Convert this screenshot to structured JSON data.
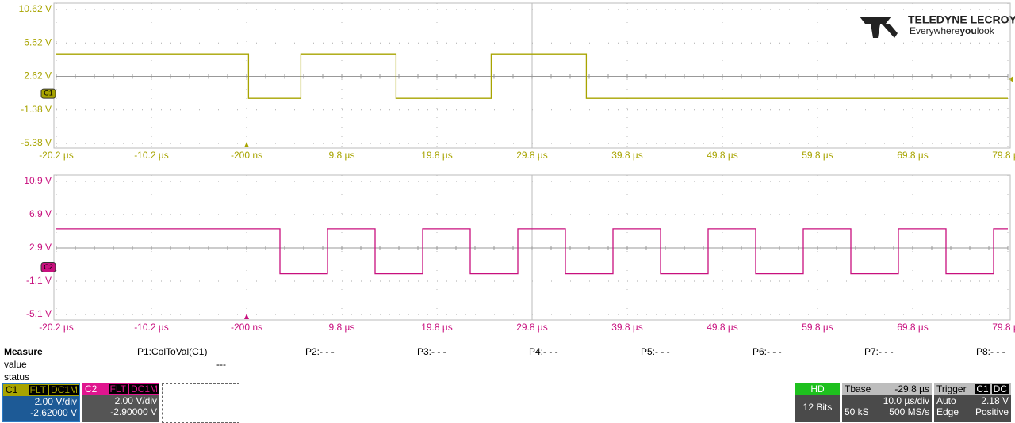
{
  "chart_data": [
    {
      "type": "line",
      "x": [
        -20.2,
        0,
        0,
        5.5,
        5.5,
        15.5,
        15.5,
        25.5,
        25.5,
        35.5,
        35.5,
        79.8
      ],
      "series": [
        {
          "name": "C1",
          "color": "#a8a400",
          "values": [
            5.3,
            5.3,
            0,
            0,
            5.3,
            5.3,
            0,
            0,
            5.3,
            5.3,
            0,
            0
          ]
        }
      ],
      "xlim": [
        -20.2,
        79.8
      ],
      "ylim": [
        -5.38,
        10.62
      ],
      "xticks": [
        {
          "value": -20.2,
          "label": "-20.2 µs"
        },
        {
          "value": -10.2,
          "label": "-10.2 µs"
        },
        {
          "value": -0.2,
          "label": "-200 ns"
        },
        {
          "value": 9.8,
          "label": "9.8 µs"
        },
        {
          "value": 19.8,
          "label": "19.8 µs"
        },
        {
          "value": 29.8,
          "label": "29.8 µs"
        },
        {
          "value": 39.8,
          "label": "39.8 µs"
        },
        {
          "value": 49.8,
          "label": "49.8 µs"
        },
        {
          "value": 59.8,
          "label": "59.8 µs"
        },
        {
          "value": 69.8,
          "label": "69.8 µs"
        },
        {
          "value": 79.8,
          "label": "79.8 µs"
        }
      ],
      "yticks": [
        {
          "value": 10.62,
          "label": "10.62 V"
        },
        {
          "value": 6.62,
          "label": "6.62 V"
        },
        {
          "value": 2.62,
          "label": "2.62 V"
        },
        {
          "value": -1.38,
          "label": "-1.38 V"
        },
        {
          "value": -5.38,
          "label": "-5.38 V"
        }
      ],
      "grid": true
    },
    {
      "type": "line",
      "x": [
        -20.2,
        3.3,
        3.3,
        8.3,
        8.3,
        13.3,
        13.3,
        18.3,
        18.3,
        23.3,
        23.3,
        28.3,
        28.3,
        33.3,
        33.3,
        38.3,
        38.3,
        43.3,
        43.3,
        48.3,
        48.3,
        53.3,
        53.3,
        58.3,
        58.3,
        63.3,
        63.3,
        68.3,
        68.3,
        73.3,
        73.3,
        78.3,
        78.3,
        79.8
      ],
      "series": [
        {
          "name": "C2",
          "color": "#c8107e",
          "values": [
            5.2,
            5.2,
            -0.2,
            -0.2,
            5.2,
            5.2,
            -0.2,
            -0.2,
            5.2,
            5.2,
            -0.2,
            -0.2,
            5.2,
            5.2,
            -0.2,
            -0.2,
            5.2,
            5.2,
            -0.2,
            -0.2,
            5.2,
            5.2,
            -0.2,
            -0.2,
            5.2,
            5.2,
            -0.2,
            -0.2,
            5.2,
            5.2,
            -0.2,
            -0.2,
            5.2,
            5.2
          ]
        }
      ],
      "xlim": [
        -20.2,
        79.8
      ],
      "ylim": [
        -5.1,
        10.9
      ],
      "xticks": [
        {
          "value": -20.2,
          "label": "-20.2 µs"
        },
        {
          "value": -10.2,
          "label": "-10.2 µs"
        },
        {
          "value": -0.2,
          "label": "-200 ns"
        },
        {
          "value": 9.8,
          "label": "9.8 µs"
        },
        {
          "value": 19.8,
          "label": "19.8 µs"
        },
        {
          "value": 29.8,
          "label": "29.8 µs"
        },
        {
          "value": 39.8,
          "label": "39.8 µs"
        },
        {
          "value": 49.8,
          "label": "49.8 µs"
        },
        {
          "value": 59.8,
          "label": "59.8 µs"
        },
        {
          "value": 69.8,
          "label": "69.8 µs"
        },
        {
          "value": 79.8,
          "label": "79.8 µs"
        }
      ],
      "yticks": [
        {
          "value": 10.9,
          "label": "10.9 V"
        },
        {
          "value": 6.9,
          "label": "6.9 V"
        },
        {
          "value": 2.9,
          "label": "2.9 V"
        },
        {
          "value": -1.1,
          "label": "-1.1 V"
        },
        {
          "value": -5.1,
          "label": "-5.1 V"
        }
      ],
      "grid": true
    }
  ],
  "logo": {
    "brand": "TELEDYNE LECROY",
    "tagline": [
      "Everywhere",
      "you",
      "look"
    ]
  },
  "measure": {
    "title": "Measure",
    "row_labels": [
      "value",
      "status"
    ],
    "params": [
      "P1:ColToVal(C1)",
      "P2:- - -",
      "P3:- - -",
      "P4:- - -",
      "P5:- - -",
      "P6:- - -",
      "P7:- - -",
      "P8:- - -"
    ],
    "p1_value": "---"
  },
  "channels": [
    {
      "name": "C1",
      "badges": [
        "FLT",
        "DC1M"
      ],
      "scale": "2.00 V/div",
      "offset": "-2.62000 V"
    },
    {
      "name": "C2",
      "badges": [
        "FLT",
        "DC1M"
      ],
      "scale": "2.00 V/div",
      "offset": "-2.90000 V"
    }
  ],
  "hd": {
    "title": "HD",
    "bits": "12 Bits"
  },
  "timebase": {
    "title": "Tbase",
    "delay": "-29.8 µs",
    "scale": "10.0 µs/div",
    "samples": "50 kS",
    "rate": "500 MS/s"
  },
  "trigger": {
    "title": "Trigger",
    "badges": [
      "C1",
      "DC"
    ],
    "mode": "Auto",
    "level": "2.18 V",
    "type": "Edge",
    "slope": "Positive"
  }
}
